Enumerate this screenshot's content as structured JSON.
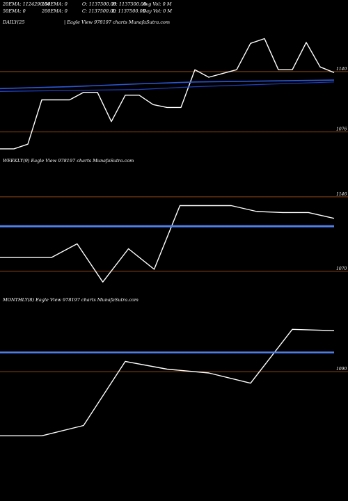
{
  "header": {
    "row1": [
      "20EMA: 1124290.04",
      "100EMA: 0",
      "O: 1137500.00",
      "H: 1137500.00",
      "Avg Vol: 0  M"
    ],
    "row2": [
      "50EMA: 0",
      "200EMA: 0",
      "C: 1137500.00",
      "L: 1137500.00",
      "Day Vol: 0  M"
    ]
  },
  "colors": {
    "background": "#000000",
    "price_line": "#ffffff",
    "level_line": "#8b4513",
    "ema_daily": "#1f3fbf",
    "ema_weekly": "#4f7fe8",
    "text": "#ffffff"
  },
  "chart_data": [
    {
      "type": "line",
      "panel_label": "DAILY(25",
      "watermark": "| Eagle   View  978197 charts MunafaSutra.com",
      "ylim": [
        1055000,
        1185000
      ],
      "y_ticks": [
        1140000,
        1076000
      ],
      "y_tick_labels": [
        "1140",
        "1076"
      ],
      "levels": [
        1140000,
        1076000
      ],
      "series": [
        {
          "role": "close",
          "x": [
            0,
            1,
            2,
            3,
            4,
            5,
            6,
            7,
            8,
            9,
            10,
            11,
            12,
            13,
            14,
            15,
            16,
            17,
            18,
            19,
            20,
            21,
            22,
            23,
            24
          ],
          "values": [
            1058000,
            1058000,
            1063000,
            1110000,
            1110000,
            1110000,
            1118000,
            1118000,
            1087000,
            1115000,
            1115000,
            1105000,
            1102000,
            1102000,
            1142000,
            1134000,
            1138000,
            1142000,
            1170000,
            1175000,
            1142000,
            1142000,
            1171000,
            1145000,
            1139000
          ]
        },
        {
          "role": "ema",
          "x": [
            0,
            10,
            14,
            24
          ],
          "values": [
            1119000,
            1121000,
            1124000,
            1129000
          ]
        },
        {
          "role": "ema",
          "x": [
            0,
            5,
            10,
            14,
            24
          ],
          "values": [
            1122000,
            1124000,
            1127000,
            1129000,
            1131000
          ]
        }
      ]
    },
    {
      "type": "line",
      "panel_label": "WEEKLY(9) Eagle   View  978197 charts MunafaSutra.com",
      "ylim": [
        1050000,
        1175000
      ],
      "y_ticks": [
        1146000,
        1070000
      ],
      "y_tick_labels": [
        "1146",
        "1070"
      ],
      "levels": [
        1146000,
        1070000
      ],
      "series": [
        {
          "role": "close",
          "x": [
            0,
            1,
            2,
            3,
            4,
            5,
            6,
            7,
            8,
            9,
            10,
            11,
            12,
            13
          ],
          "values": [
            1084000,
            1084000,
            1084000,
            1098000,
            1059000,
            1093000,
            1072000,
            1137000,
            1137000,
            1137000,
            1131000,
            1130000,
            1130000,
            1124000
          ]
        },
        {
          "role": "ema",
          "x": [
            0,
            13
          ],
          "values": [
            1116000,
            1116000
          ]
        }
      ]
    },
    {
      "type": "line",
      "panel_label": "MONTHLY(8) Eagle   View  978197 charts MunafaSutra.com",
      "ylim": [
        1000000,
        1140000
      ],
      "y_ticks": [
        1090000
      ],
      "y_tick_labels": [
        "1090"
      ],
      "levels": [
        1090000
      ],
      "series": [
        {
          "role": "close",
          "x": [
            0,
            1,
            2,
            3,
            4,
            5,
            6,
            7,
            8
          ],
          "values": [
            1040000,
            1040000,
            1048000,
            1098000,
            1092000,
            1089000,
            1081000,
            1123000,
            1122000
          ]
        },
        {
          "role": "ema",
          "x": [
            0,
            8
          ],
          "values": [
            1105000,
            1105000
          ]
        }
      ]
    }
  ]
}
